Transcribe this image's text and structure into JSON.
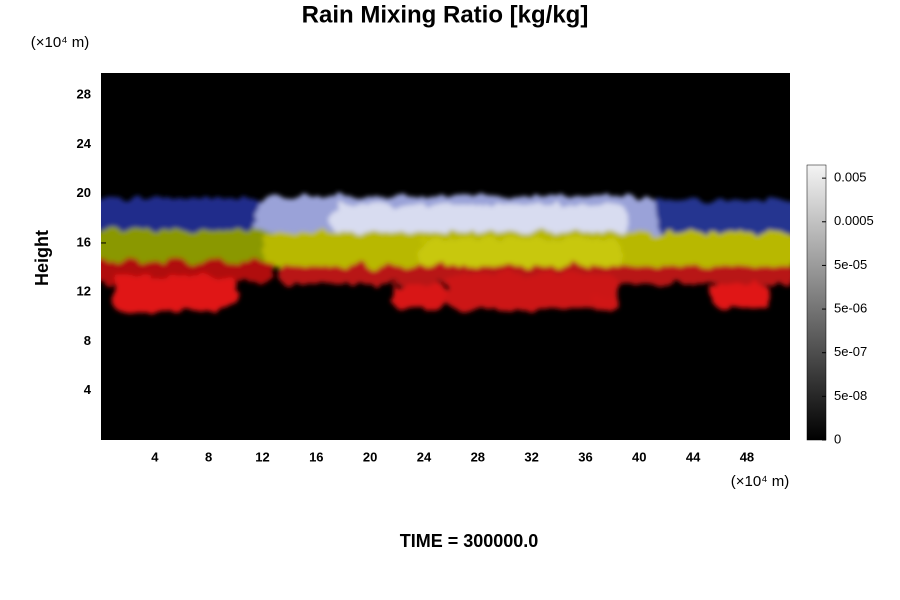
{
  "chart_data": {
    "type": "field",
    "title": "Rain Mixing Ratio [kg/kg]",
    "x_unit": "(×10⁴ m)",
    "y_unit": "(×10⁴ m)",
    "ylabel": "Height",
    "annotation": "TIME = 300000.0",
    "xlim": [
      0,
      51.2
    ],
    "xticks": [
      4,
      8,
      12,
      16,
      20,
      24,
      28,
      32,
      36,
      40,
      44,
      48
    ],
    "ylim": [
      0,
      29.8
    ],
    "yticks": [
      4,
      8,
      12,
      16,
      20,
      24,
      28
    ],
    "colorbar_scale": "symlog",
    "linthresh": 5e-08,
    "clim": [
      0,
      0.01
    ],
    "colorbar_ticks": [
      0,
      {
        "value": 5e-08,
        "label": "5e-08"
      },
      {
        "value": 5e-07,
        "label": "5e-07"
      },
      {
        "value": 5e-06,
        "label": "5e-06"
      },
      {
        "value": 5e-05,
        "label": "5e-05"
      },
      0.0005,
      0.005
    ]
  }
}
